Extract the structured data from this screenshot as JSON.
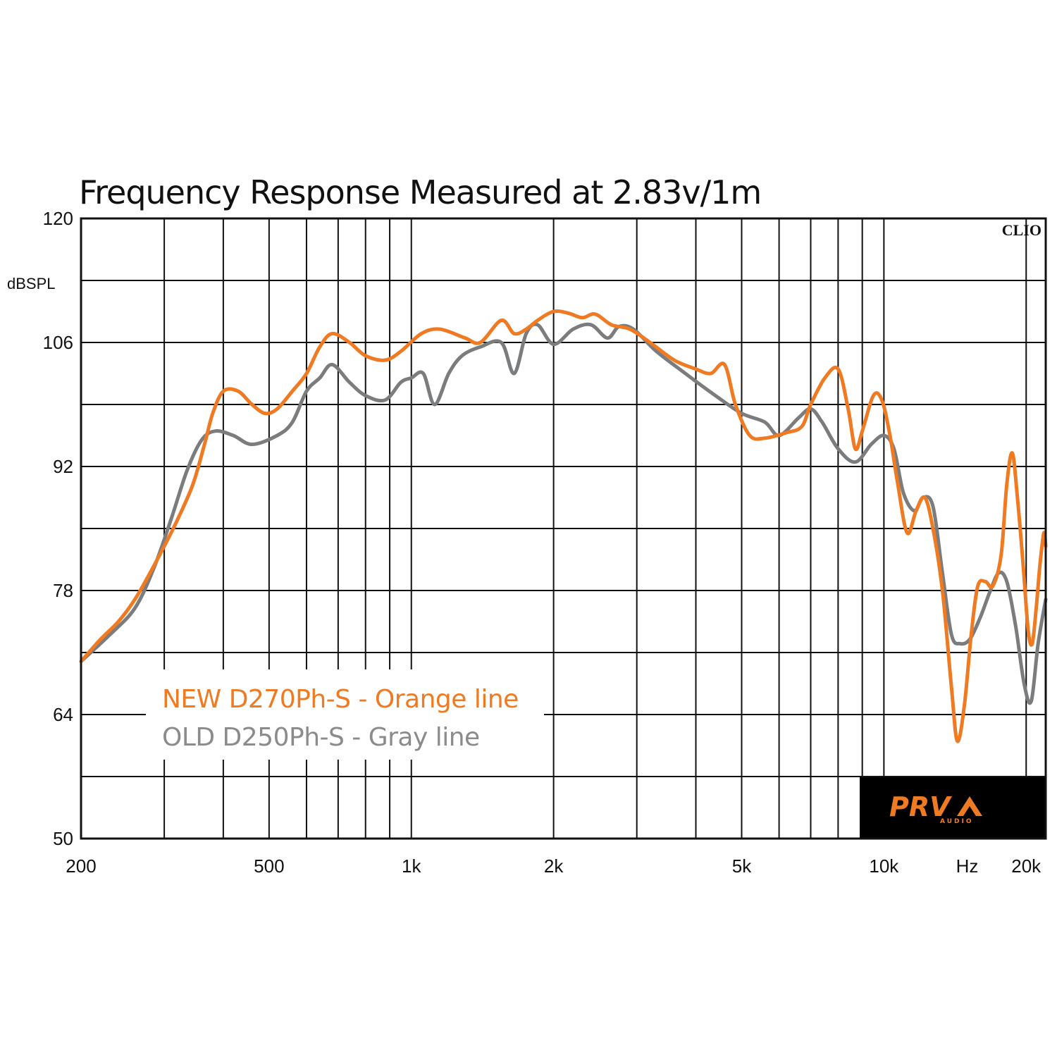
{
  "chart_data": {
    "type": "line",
    "title": "Frequency Response Measured at 2.83v/1m",
    "ylabel": "dBSPL",
    "xlabel": "Hz",
    "x_scale": "log",
    "xlim": [
      200,
      22000
    ],
    "ylim": [
      50,
      120
    ],
    "y_ticks": [
      120,
      106,
      92,
      78,
      64,
      50
    ],
    "x_ticks": [
      {
        "value": 200,
        "label": "200"
      },
      {
        "value": 500,
        "label": "500"
      },
      {
        "value": 1000,
        "label": "1k"
      },
      {
        "value": 2000,
        "label": "2k"
      },
      {
        "value": 5000,
        "label": "5k"
      },
      {
        "value": 10000,
        "label": "10k"
      },
      {
        "value": 20000,
        "label": "20k"
      }
    ],
    "x_unit_label": "Hz",
    "grid": true,
    "corner_label": "CLIO",
    "legend_position": "bottom-left",
    "series": [
      {
        "name": "NEW D270Ph-S - Orange line",
        "color": "#f07a22",
        "points": [
          [
            200,
            70.0
          ],
          [
            220,
            72.5
          ],
          [
            240,
            74.5
          ],
          [
            260,
            77.0
          ],
          [
            280,
            80.0
          ],
          [
            300,
            83.0
          ],
          [
            320,
            86.0
          ],
          [
            345,
            90.0
          ],
          [
            365,
            94.5
          ],
          [
            380,
            98.0
          ],
          [
            400,
            100.5
          ],
          [
            430,
            100.5
          ],
          [
            460,
            99.0
          ],
          [
            490,
            98.0
          ],
          [
            520,
            98.5
          ],
          [
            560,
            100.5
          ],
          [
            600,
            102.5
          ],
          [
            640,
            105.5
          ],
          [
            680,
            107.0
          ],
          [
            740,
            106.0
          ],
          [
            800,
            104.5
          ],
          [
            880,
            104.0
          ],
          [
            950,
            105.0
          ],
          [
            1050,
            107.0
          ],
          [
            1150,
            107.5
          ],
          [
            1300,
            106.5
          ],
          [
            1400,
            106.0
          ],
          [
            1550,
            108.5
          ],
          [
            1650,
            107.0
          ],
          [
            1750,
            107.5
          ],
          [
            1850,
            108.5
          ],
          [
            2000,
            109.5
          ],
          [
            2150,
            109.3
          ],
          [
            2300,
            108.8
          ],
          [
            2450,
            109.2
          ],
          [
            2650,
            108.0
          ],
          [
            2900,
            107.5
          ],
          [
            3200,
            106.0
          ],
          [
            3600,
            104.0
          ],
          [
            4000,
            103.0
          ],
          [
            4300,
            102.5
          ],
          [
            4600,
            103.5
          ],
          [
            4850,
            99.0
          ],
          [
            5200,
            95.5
          ],
          [
            5600,
            95.2
          ],
          [
            6200,
            95.8
          ],
          [
            6700,
            96.5
          ],
          [
            7000,
            99.0
          ],
          [
            7500,
            102.0
          ],
          [
            8000,
            103.0
          ],
          [
            8400,
            98.5
          ],
          [
            8700,
            94.0
          ],
          [
            9000,
            96.0
          ],
          [
            9500,
            100.0
          ],
          [
            9900,
            99.5
          ],
          [
            10300,
            95.5
          ],
          [
            10700,
            90.0
          ],
          [
            11200,
            84.5
          ],
          [
            11700,
            87.0
          ],
          [
            12200,
            88.5
          ],
          [
            12700,
            85.0
          ],
          [
            13300,
            78.0
          ],
          [
            13900,
            67.0
          ],
          [
            14300,
            61.0
          ],
          [
            14800,
            65.0
          ],
          [
            15300,
            73.0
          ],
          [
            15800,
            78.5
          ],
          [
            16400,
            79.0
          ],
          [
            17000,
            78.5
          ],
          [
            17700,
            82.0
          ],
          [
            18200,
            90.0
          ],
          [
            18700,
            93.5
          ],
          [
            19200,
            88.0
          ],
          [
            19700,
            81.0
          ],
          [
            20200,
            73.5
          ],
          [
            20600,
            72.0
          ],
          [
            21000,
            76.0
          ],
          [
            21400,
            81.0
          ],
          [
            21800,
            84.5
          ],
          [
            22000,
            83.0
          ]
        ]
      },
      {
        "name": "OLD D250Ph-S - Gray line",
        "color": "#7b7c7e",
        "points": [
          [
            200,
            70.0
          ],
          [
            230,
            73.0
          ],
          [
            260,
            76.0
          ],
          [
            285,
            80.5
          ],
          [
            310,
            86.0
          ],
          [
            335,
            91.5
          ],
          [
            360,
            95.0
          ],
          [
            385,
            96.0
          ],
          [
            420,
            95.5
          ],
          [
            460,
            94.5
          ],
          [
            520,
            95.5
          ],
          [
            560,
            97.0
          ],
          [
            600,
            100.5
          ],
          [
            640,
            102.0
          ],
          [
            680,
            103.5
          ],
          [
            740,
            101.5
          ],
          [
            800,
            100.0
          ],
          [
            880,
            99.5
          ],
          [
            950,
            101.5
          ],
          [
            1000,
            102.0
          ],
          [
            1060,
            102.5
          ],
          [
            1120,
            99.0
          ],
          [
            1200,
            102.5
          ],
          [
            1280,
            104.5
          ],
          [
            1400,
            105.5
          ],
          [
            1550,
            106.0
          ],
          [
            1650,
            102.5
          ],
          [
            1750,
            107.0
          ],
          [
            1850,
            108.0
          ],
          [
            2000,
            105.8
          ],
          [
            2200,
            107.5
          ],
          [
            2400,
            108.0
          ],
          [
            2600,
            106.5
          ],
          [
            2750,
            107.8
          ],
          [
            2950,
            107.5
          ],
          [
            3300,
            105.0
          ],
          [
            3800,
            102.5
          ],
          [
            4400,
            100.0
          ],
          [
            5000,
            98.0
          ],
          [
            5600,
            97.0
          ],
          [
            6000,
            95.5
          ],
          [
            6600,
            97.5
          ],
          [
            7000,
            98.5
          ],
          [
            7400,
            97.0
          ],
          [
            8000,
            94.0
          ],
          [
            8700,
            92.5
          ],
          [
            9400,
            94.5
          ],
          [
            10000,
            95.5
          ],
          [
            10500,
            94.0
          ],
          [
            11000,
            89.0
          ],
          [
            11600,
            87.0
          ],
          [
            12100,
            88.5
          ],
          [
            12700,
            87.5
          ],
          [
            13300,
            80.0
          ],
          [
            13900,
            73.0
          ],
          [
            14500,
            72.0
          ],
          [
            15200,
            72.5
          ],
          [
            16000,
            75.0
          ],
          [
            16800,
            78.0
          ],
          [
            17500,
            80.0
          ],
          [
            18200,
            79.0
          ],
          [
            19000,
            74.0
          ],
          [
            19800,
            67.5
          ],
          [
            20500,
            65.5
          ],
          [
            21200,
            72.0
          ],
          [
            22000,
            77.0
          ]
        ]
      }
    ]
  },
  "legend": {
    "new_label": "NEW D270Ph-S - Orange line",
    "old_label": "OLD D250Ph-S - Gray line"
  },
  "logo": {
    "brand": "PRV",
    "sub": "AUDIO"
  }
}
